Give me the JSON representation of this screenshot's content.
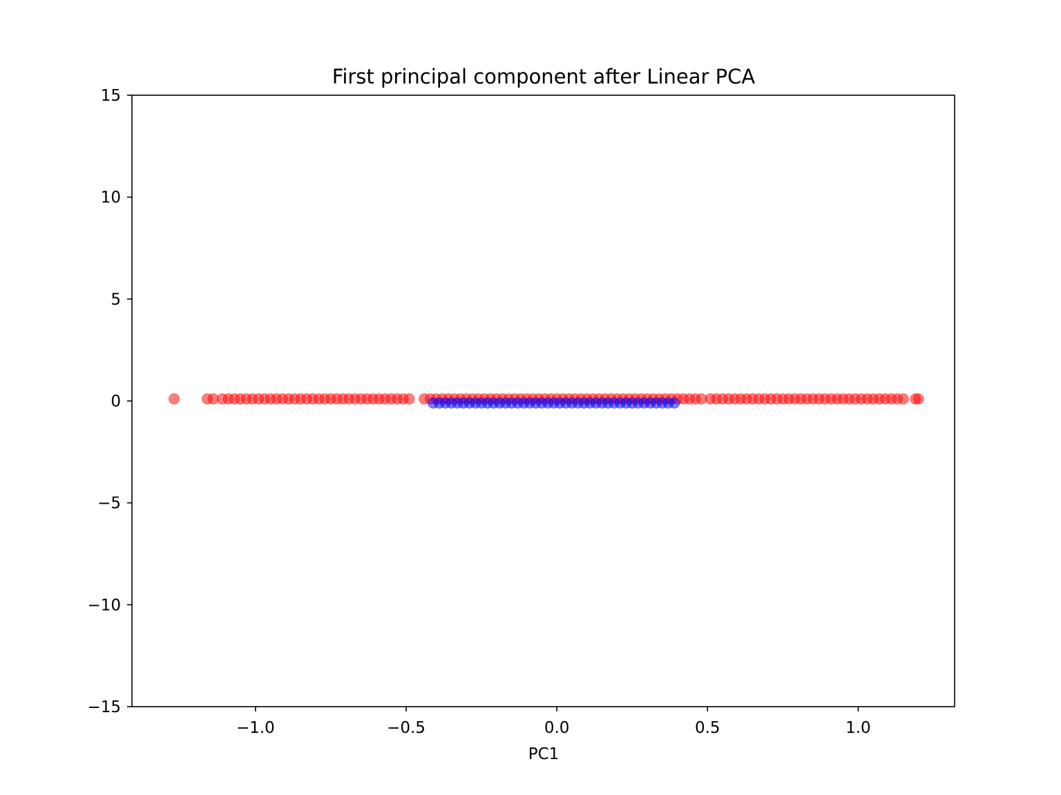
{
  "chart_data": {
    "type": "scatter",
    "title": "First principal component after Linear PCA",
    "xlabel": "PC1",
    "ylabel": "",
    "xlim": [
      -1.41,
      1.32
    ],
    "ylim": [
      -15,
      15
    ],
    "xticks": [
      -1.0,
      -0.5,
      0.0,
      0.5,
      1.0
    ],
    "xtick_labels": [
      "−1.0",
      "−0.5",
      "0.0",
      "0.5",
      "1.0"
    ],
    "yticks": [
      15,
      10,
      5,
      0,
      -5,
      -10,
      -15
    ],
    "ytick_labels": [
      "15",
      "10",
      "5",
      "0",
      "−5",
      "−10",
      "−15"
    ],
    "grid": false,
    "legend": "none",
    "series": [
      {
        "color": "#ff0000",
        "alpha": 0.5,
        "y_value": 0.1,
        "x": [
          -1.27,
          -1.16,
          -1.14,
          -1.11,
          -1.09,
          -1.07,
          -1.05,
          -1.03,
          -1.01,
          -0.99,
          -0.97,
          -0.95,
          -0.93,
          -0.91,
          -0.89,
          -0.87,
          -0.85,
          -0.83,
          -0.81,
          -0.79,
          -0.77,
          -0.75,
          -0.73,
          -0.71,
          -0.69,
          -0.67,
          -0.65,
          -0.63,
          -0.61,
          -0.59,
          -0.57,
          -0.55,
          -0.53,
          -0.51,
          -0.49,
          -0.44,
          -0.42,
          -0.4,
          -0.38,
          -0.36,
          -0.34,
          -0.32,
          -0.3,
          -0.28,
          -0.26,
          -0.24,
          -0.22,
          -0.2,
          -0.18,
          -0.16,
          -0.14,
          -0.12,
          -0.1,
          -0.08,
          -0.06,
          -0.04,
          -0.02,
          0.0,
          0.02,
          0.04,
          0.06,
          0.08,
          0.1,
          0.12,
          0.14,
          0.16,
          0.18,
          0.2,
          0.22,
          0.24,
          0.26,
          0.28,
          0.3,
          0.32,
          0.34,
          0.36,
          0.38,
          0.4,
          0.42,
          0.44,
          0.46,
          0.48,
          0.51,
          0.53,
          0.55,
          0.57,
          0.59,
          0.61,
          0.63,
          0.65,
          0.67,
          0.69,
          0.71,
          0.73,
          0.75,
          0.77,
          0.79,
          0.81,
          0.83,
          0.85,
          0.87,
          0.89,
          0.91,
          0.93,
          0.95,
          0.97,
          0.99,
          1.01,
          1.03,
          1.05,
          1.07,
          1.09,
          1.11,
          1.13,
          1.15,
          1.19,
          1.2
        ]
      },
      {
        "color": "#0000ff",
        "alpha": 0.5,
        "y_value": -0.1,
        "x": [
          -0.41,
          -0.39,
          -0.37,
          -0.35,
          -0.33,
          -0.31,
          -0.29,
          -0.27,
          -0.25,
          -0.23,
          -0.21,
          -0.19,
          -0.17,
          -0.15,
          -0.13,
          -0.11,
          -0.09,
          -0.07,
          -0.05,
          -0.03,
          -0.01,
          0.01,
          0.03,
          0.05,
          0.07,
          0.09,
          0.11,
          0.13,
          0.15,
          0.17,
          0.19,
          0.21,
          0.23,
          0.25,
          0.27,
          0.29,
          0.31,
          0.33,
          0.35,
          0.37,
          0.39
        ]
      }
    ]
  }
}
